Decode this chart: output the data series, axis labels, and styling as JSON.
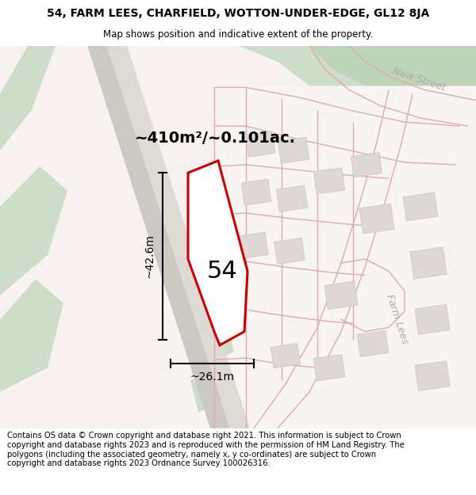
{
  "title_line1": "54, FARM LEES, CHARFIELD, WOTTON-UNDER-EDGE, GL12 8JA",
  "title_line2": "Map shows position and indicative extent of the property.",
  "footer_text": "Contains OS data © Crown copyright and database right 2021. This information is subject to Crown copyright and database rights 2023 and is reproduced with the permission of HM Land Registry. The polygons (including the associated geometry, namely x, y co-ordinates) are subject to Crown copyright and database rights 2023 Ordnance Survey 100026316.",
  "area_label": "~410m²/~0.101ac.",
  "width_label": "~26.1m",
  "height_label": "~42.6m",
  "property_number": "54",
  "map_bg": "#f5f0ee",
  "green_light": "#cdddc9",
  "road_pink": "#e8b8b8",
  "road_pink_thin": "#e8c0c0",
  "plot_red": "#cc0000",
  "building_fill": "#ddd8d5",
  "building_edge": "#ccc5c0",
  "grey_road_dark": "#c8c0bc",
  "grey_road_light": "#ddd8d4",
  "title_fontsize": 10,
  "footer_fontsize": 7.2,
  "label_fontsize": 9,
  "new_street_label": "New Street",
  "farm_lees_label": "Farm Lees"
}
